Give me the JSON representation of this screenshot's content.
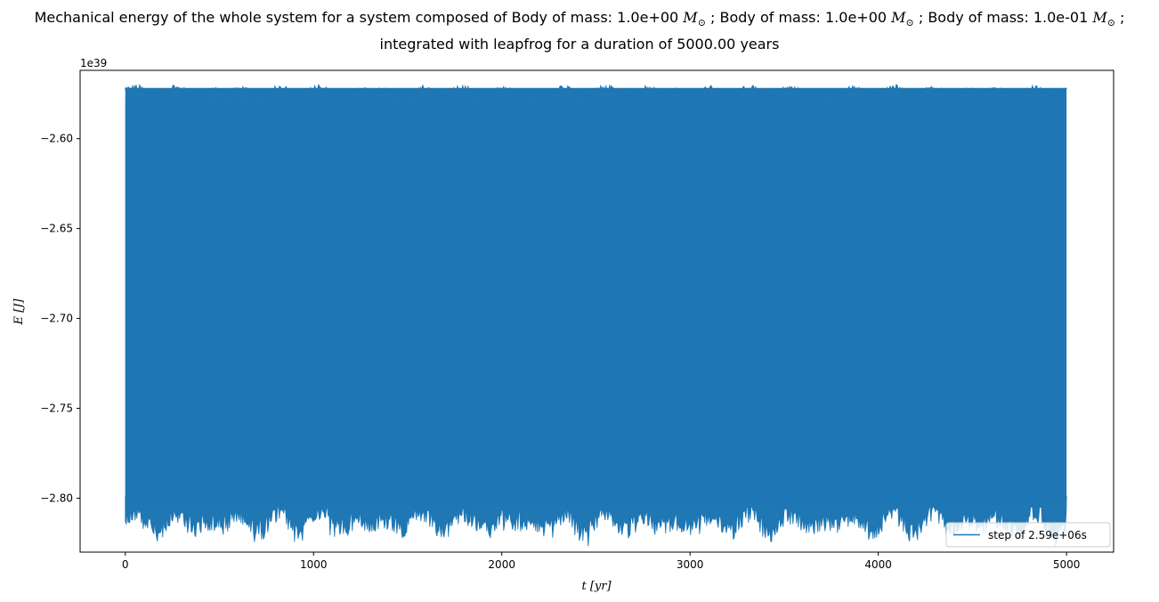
{
  "chart_data": {
    "type": "line",
    "title_line1_parts": [
      "Mechanical energy of the whole system for a system composed of Body of mass: 1.0e+00 ",
      " ; Body of mass: 1.0e+00 ",
      " ; Body of mass: 1.0e-01 ",
      " ;"
    ],
    "msun_symbol": "M",
    "msun_subscript": "⊙",
    "title_line2": "integrated with leapfrog for a duration of 5000.00 years",
    "xlabel": "t [yr]",
    "ylabel": "E [J]",
    "y_offset_label": "1e39",
    "xlim": [
      -240,
      5250
    ],
    "ylim": [
      -2.83,
      -2.562
    ],
    "x_ticks": [
      0,
      1000,
      2000,
      3000,
      4000,
      5000
    ],
    "x_tick_labels": [
      "0",
      "1000",
      "2000",
      "3000",
      "4000",
      "5000"
    ],
    "y_ticks": [
      -2.8,
      -2.75,
      -2.7,
      -2.65,
      -2.6
    ],
    "y_tick_labels": [
      "−2.80",
      "−2.75",
      "−2.70",
      "−2.65",
      "−2.60"
    ],
    "grid": false,
    "legend_position": "lower-right",
    "series": [
      {
        "name": "step of 2.59e+06s",
        "color": "#1f77b4",
        "x_range": [
          0,
          5000
        ],
        "y_mean": -2.69,
        "y_typical_min": -2.805,
        "y_typical_max": -2.576,
        "y_extreme_min": -2.818,
        "y_extreme_max": -2.571
      }
    ]
  }
}
